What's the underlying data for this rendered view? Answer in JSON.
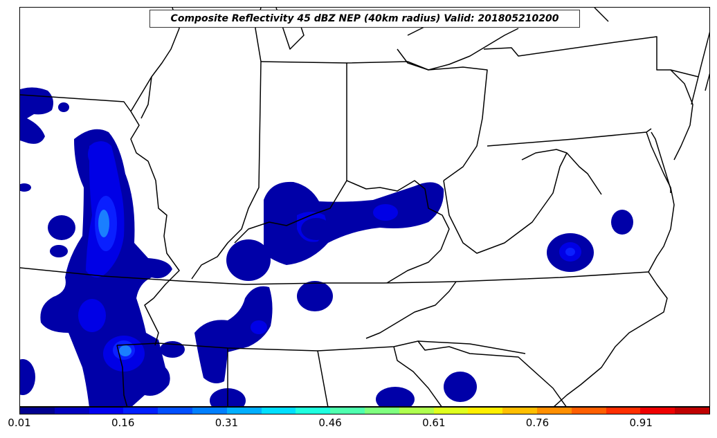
{
  "title": "Composite Reflectivity 45 dBZ NEP (40km radius) Valid: 201805210200",
  "colorbar": {
    "colors": [
      "#00008f",
      "#0000bf",
      "#0000ef",
      "#001fff",
      "#004fff",
      "#007fff",
      "#00afff",
      "#00dfff",
      "#1fffdf",
      "#4fffaf",
      "#7fff7f",
      "#afff4f",
      "#dfff1f",
      "#ffef00",
      "#ffbf00",
      "#ff8f00",
      "#ff5f00",
      "#ff2f00",
      "#ef0000",
      "#bf0000"
    ],
    "ticks": [
      "0.01",
      "0.16",
      "0.31",
      "0.46",
      "0.61",
      "0.76",
      "0.91"
    ]
  },
  "colors": {
    "prob_low": "#0000a8",
    "prob_mid": "#0000e6",
    "prob_high": "#0a1fff",
    "prob_peak": "#1a7fff"
  }
}
